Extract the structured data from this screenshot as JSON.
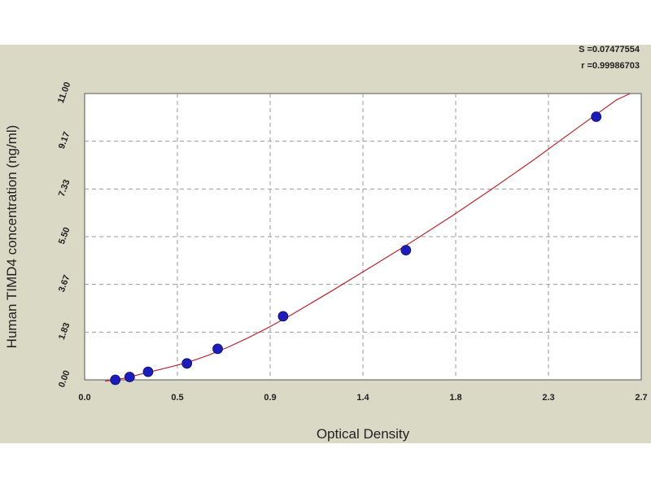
{
  "stats": {
    "s_line": "S =0.07477554",
    "r_line": "r =0.99986703"
  },
  "chart_data": {
    "type": "scatter",
    "xlabel": "Optical Density",
    "ylabel": "Human TIMD4 concentration (ng/ml)",
    "x_ticks": [
      "0.0",
      "0.5",
      "0.9",
      "1.4",
      "1.8",
      "2.3",
      "2.7"
    ],
    "y_ticks": [
      "0.00",
      "1.83",
      "3.67",
      "5.50",
      "7.33",
      "9.17",
      "11.00"
    ],
    "xlim": [
      0.0,
      2.72
    ],
    "ylim": [
      0.0,
      11.0
    ],
    "grid": true,
    "series": [
      {
        "x": [
          0.15,
          0.22,
          0.31,
          0.5,
          0.65,
          0.97,
          1.57,
          2.5
        ],
        "y": [
          0.0,
          0.11,
          0.31,
          0.63,
          1.19,
          2.44,
          4.98,
          10.11
        ]
      }
    ],
    "fit_curve": {
      "x": [
        0.1,
        0.2,
        0.3,
        0.4,
        0.5,
        0.6,
        0.7,
        0.8,
        0.9,
        1.0,
        1.2,
        1.4,
        1.6,
        1.8,
        2.0,
        2.2,
        2.4,
        2.6,
        2.72
      ],
      "y": [
        -0.12,
        0.07,
        0.27,
        0.46,
        0.66,
        0.93,
        1.25,
        1.62,
        2.02,
        2.45,
        3.38,
        4.34,
        5.31,
        6.32,
        7.38,
        8.48,
        9.63,
        10.76,
        11.4
      ]
    },
    "colors": {
      "points": "#1c1cb8",
      "curve": "#b8262e",
      "plot_bg": "#ffffff",
      "frame_bg": "#d9d9c6",
      "grid": "#9a9a9a"
    }
  }
}
